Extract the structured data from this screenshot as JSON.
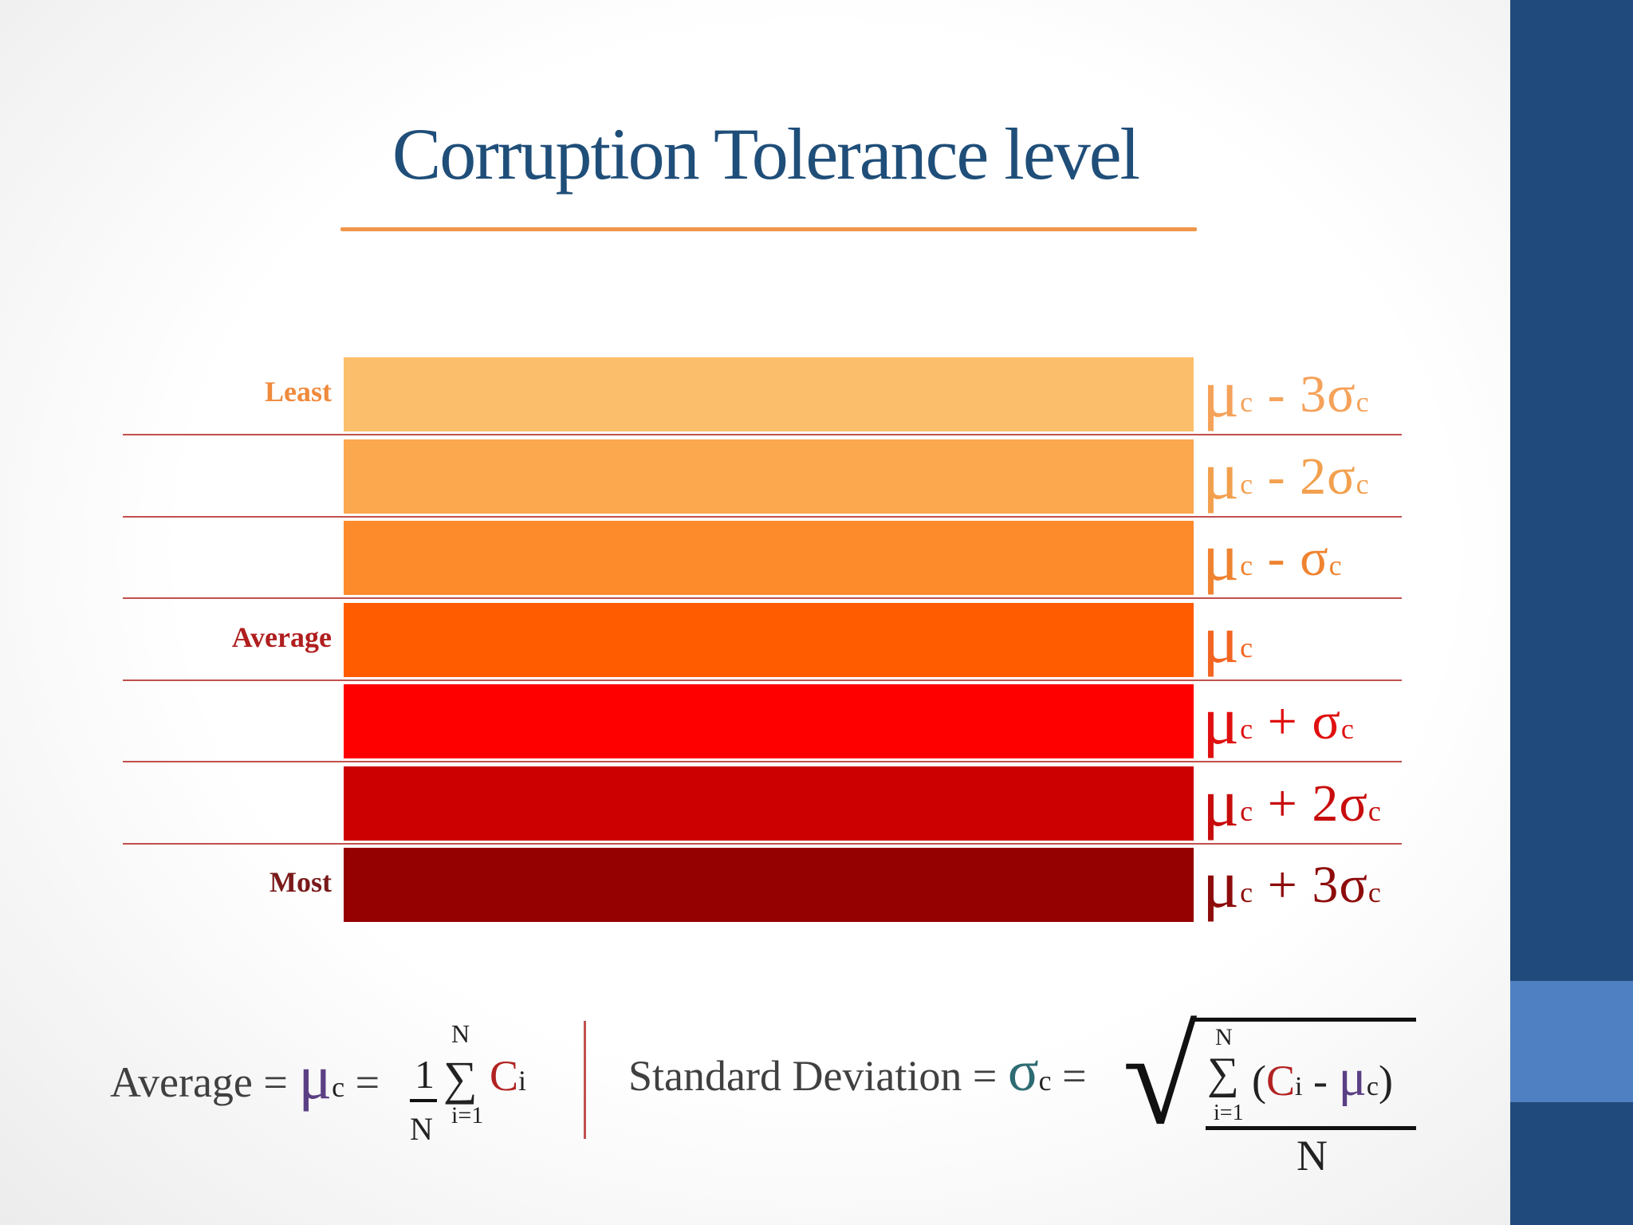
{
  "title": "Corruption Tolerance level",
  "colors": {
    "title": "#1f4e79",
    "sidebar": "#214a7c",
    "sidebar_accent": "#4f80c1",
    "rule": "#f0964a",
    "row_line": "#c0504d"
  },
  "levels": [
    {
      "color": "#fbbf6b",
      "label": "Least",
      "label_color": "#f08a3c",
      "mu": "μ",
      "sub1": "c",
      "op": " - 3",
      "sigma": "σ",
      "sub2": "c",
      "text_color": "#f5a25a"
    },
    {
      "color": "#fba84f",
      "label": "",
      "label_color": "",
      "mu": "μ",
      "sub1": "c",
      "op": " - 2",
      "sigma": "σ",
      "sub2": "c",
      "text_color": "#f2a04e"
    },
    {
      "color": "#fd8b2c",
      "label": "",
      "label_color": "",
      "mu": "μ",
      "sub1": "c",
      "op": " - ",
      "sigma": "σ",
      "sub2": "c",
      "text_color": "#ef8330"
    },
    {
      "color": "#ff5c00",
      "label": "Average",
      "label_color": "#b01e1e",
      "mu": "μ",
      "sub1": "c",
      "op": "",
      "sigma": "",
      "sub2": "",
      "text_color": "#f26522"
    },
    {
      "color": "#ff0000",
      "label": "",
      "label_color": "",
      "mu": "μ",
      "sub1": "c",
      "op": " + ",
      "sigma": "σ",
      "sub2": "c",
      "text_color": "#e01010"
    },
    {
      "color": "#cc0000",
      "label": "",
      "label_color": "",
      "mu": "μ",
      "sub1": "c",
      "op": " + 2",
      "sigma": "σ",
      "sub2": "c",
      "text_color": "#c80c0c"
    },
    {
      "color": "#950000",
      "label": "Most",
      "label_color": "#7a1a1a",
      "mu": "μ",
      "sub1": "c",
      "op": " + 3",
      "sigma": "σ",
      "sub2": "c",
      "text_color": "#8e0b0b"
    }
  ],
  "formula_avg": {
    "lhs": "Average = ",
    "mu": "μ",
    "sub": "c",
    "eq": " = ",
    "num": "1",
    "den": "N",
    "sum": "∑",
    "upper": "N",
    "lower": "i=1",
    "term": "C",
    "term_sub": "i"
  },
  "formula_sd": {
    "lhs": "Standard Deviation = ",
    "sigma": "σ",
    "sub": "c",
    "eq": " =",
    "root": "√",
    "sum": "∑",
    "upper": "N",
    "lower": "i=1",
    "open": "(",
    "term": "C",
    "term_sub": "i",
    "minus": " - ",
    "mu": "μ",
    "mu_sub": "c",
    "close": ")",
    "den": "N"
  }
}
